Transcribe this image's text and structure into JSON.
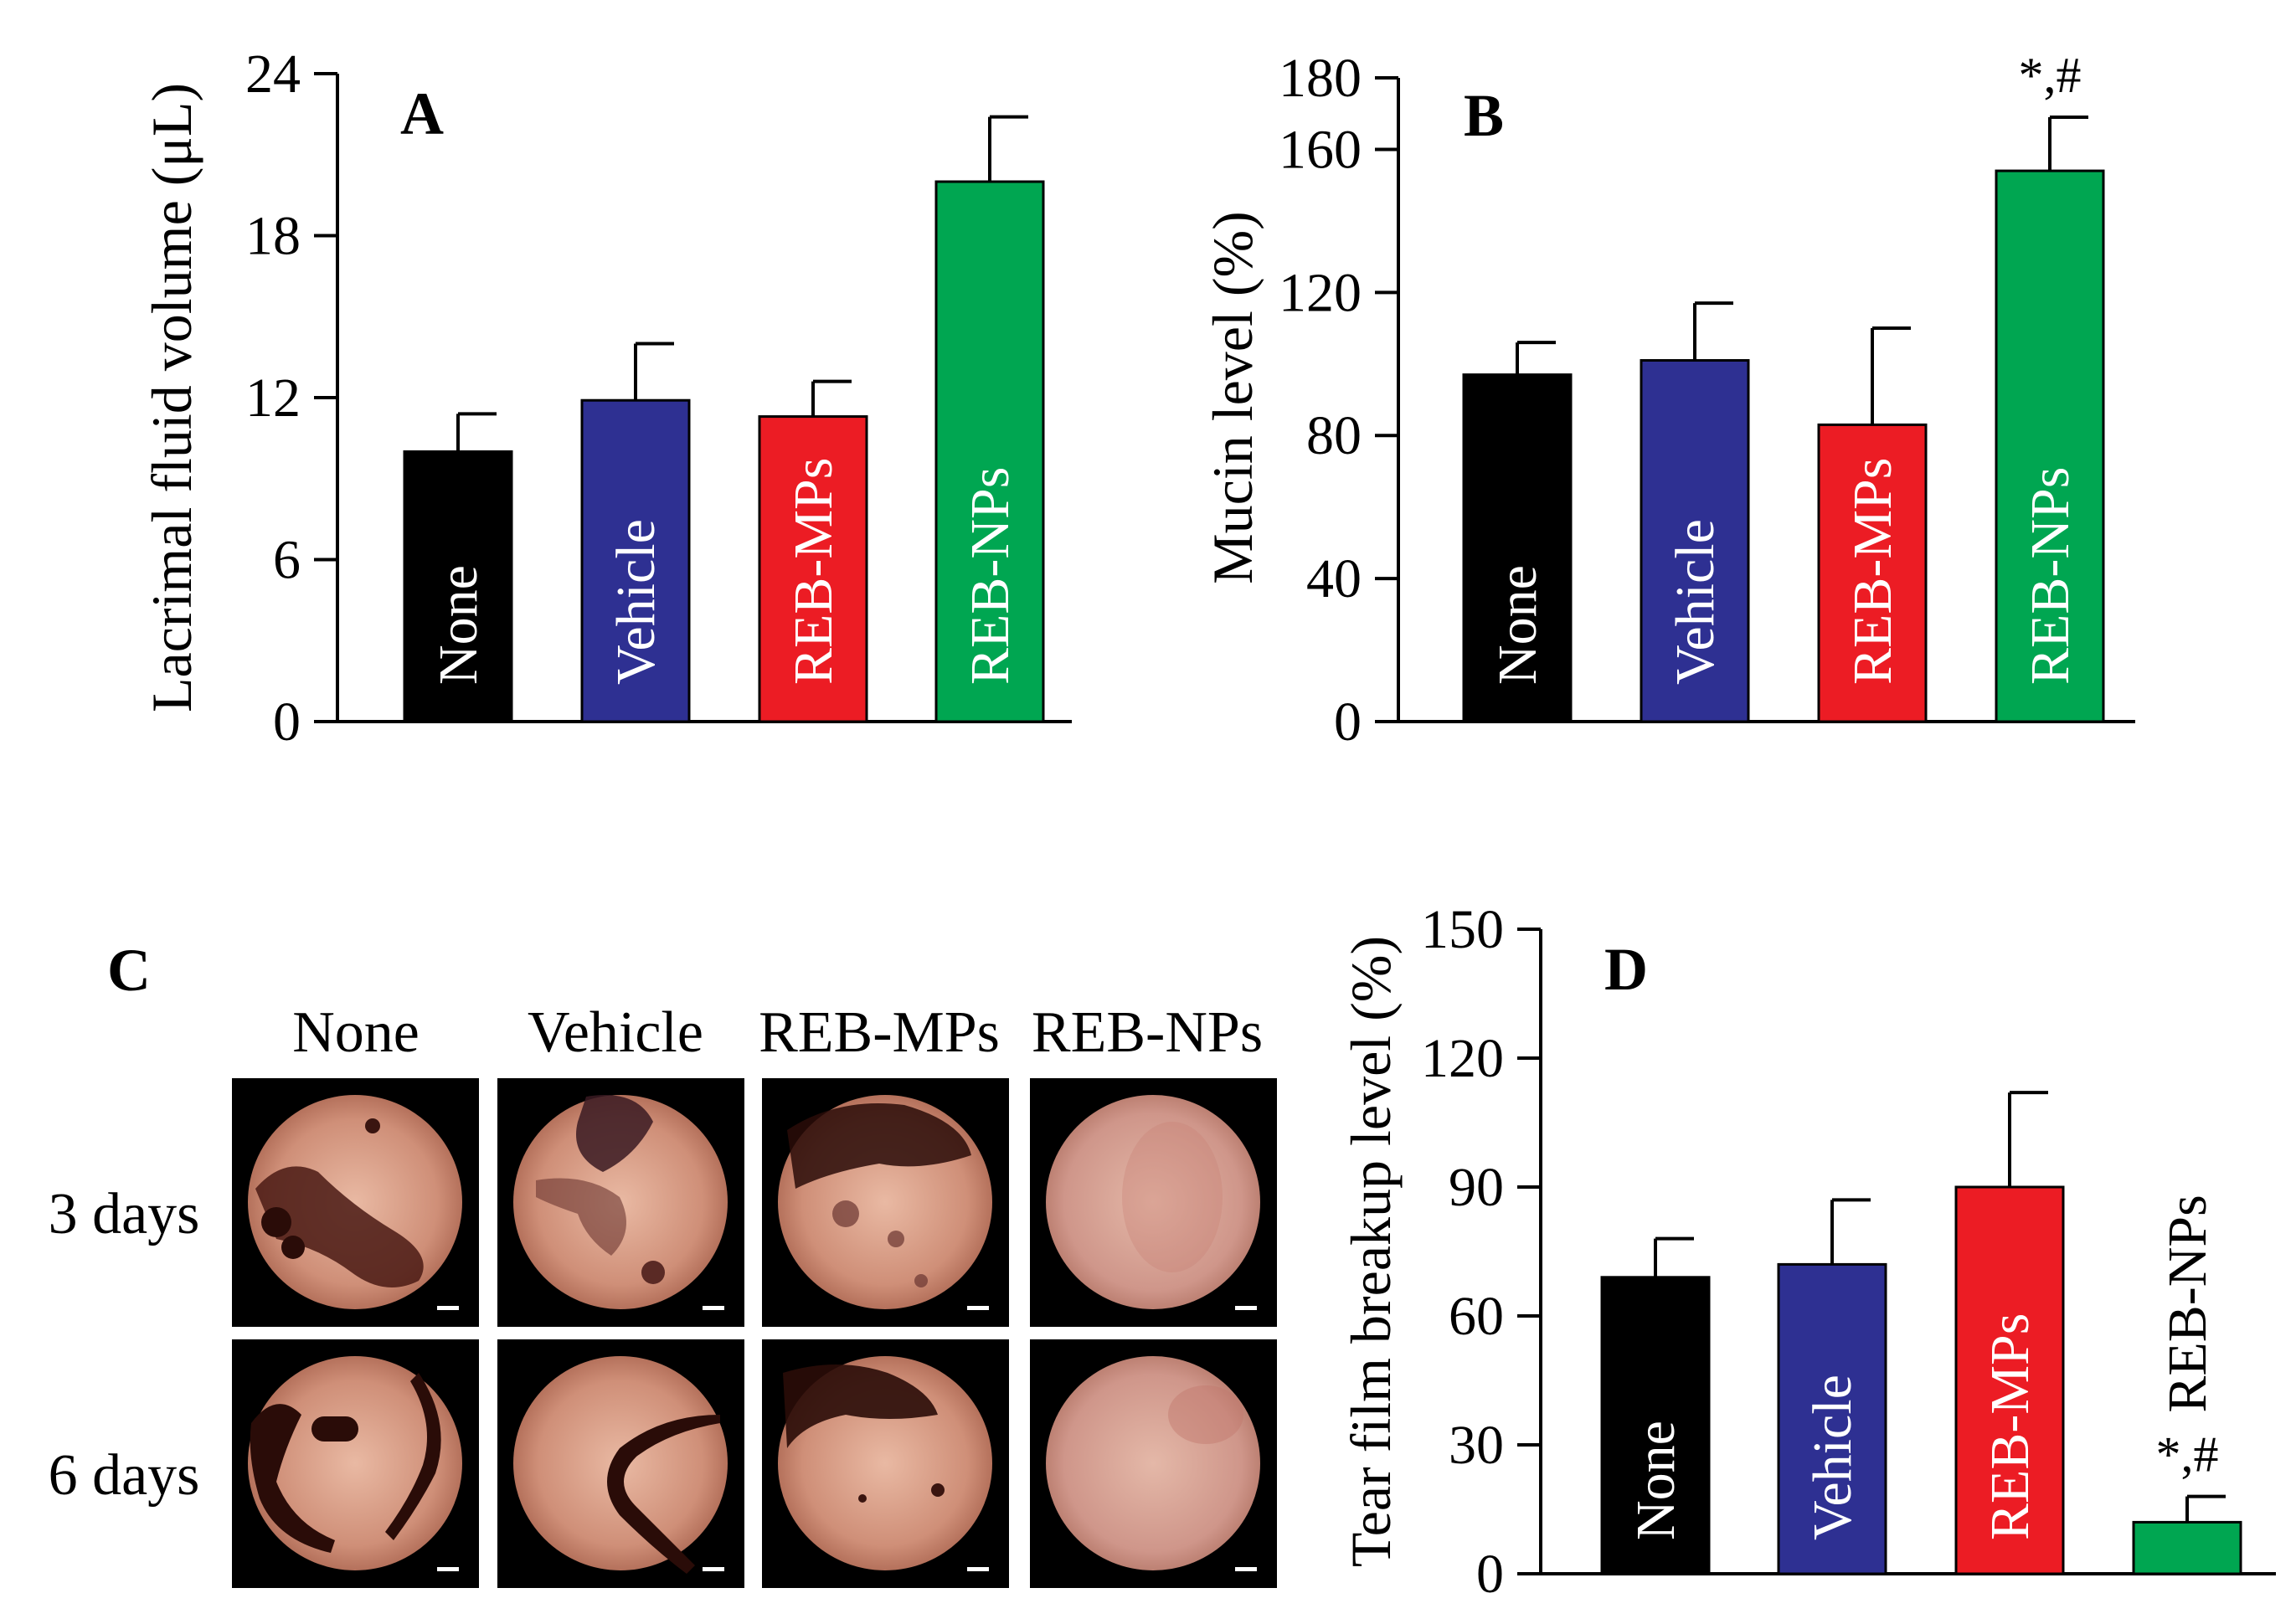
{
  "colors": {
    "None": "#000000",
    "Vehicle": "#2e3092",
    "REB-MPs": "#ec1c24",
    "REB-NPs": "#00a651"
  },
  "chart_data": [
    {
      "panel": "A",
      "type": "bar",
      "categories": [
        "None",
        "Vehicle",
        "REB-MPs",
        "REB-NPs"
      ],
      "values": [
        10.0,
        11.9,
        11.3,
        20.0
      ],
      "errors": [
        1.4,
        2.1,
        1.3,
        2.4
      ],
      "significance": [
        "",
        "",
        "",
        ""
      ],
      "xlabel": "",
      "ylabel": "Lacrimal fluid volume (μL)",
      "ylim": [
        0,
        24
      ],
      "yticks": [
        "0",
        "6",
        "12",
        "18",
        "24"
      ]
    },
    {
      "panel": "B",
      "type": "bar",
      "categories": [
        "None",
        "Vehicle",
        "REB-MPs",
        "REB-NPs"
      ],
      "values": [
        97,
        101,
        83,
        154
      ],
      "errors": [
        9,
        16,
        27,
        15
      ],
      "significance": [
        "",
        "",
        "",
        "*,#"
      ],
      "xlabel": "",
      "ylabel": "Mucin level (%)",
      "ylim": [
        0,
        180
      ],
      "yticks": [
        "0",
        "40",
        "80",
        "120",
        "160",
        "180"
      ]
    },
    {
      "panel": "D",
      "type": "bar",
      "categories": [
        "None",
        "Vehicle",
        "REB-MPs",
        "REB-NPs"
      ],
      "values": [
        69,
        72,
        90,
        12
      ],
      "errors": [
        9,
        15,
        22,
        6
      ],
      "significance": [
        "",
        "",
        "",
        "*,#"
      ],
      "xlabel": "",
      "ylabel": "Tear film breakup level (%)",
      "ylim": [
        0,
        150
      ],
      "yticks": [
        "0",
        "30",
        "60",
        "90",
        "120",
        "150"
      ]
    }
  ],
  "panel_c": {
    "label": "C",
    "columns": [
      "None",
      "Vehicle",
      "REB-MPs",
      "REB-NPs"
    ],
    "rows": [
      "3 days",
      "6 days"
    ]
  }
}
